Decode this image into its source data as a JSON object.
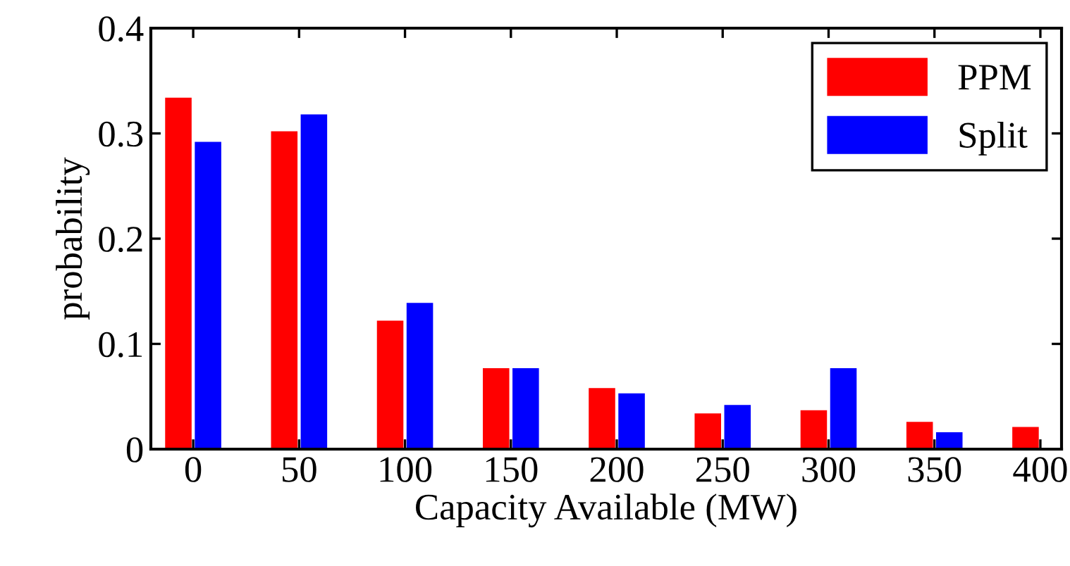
{
  "chart_data": {
    "type": "bar",
    "xlabel": "Capacity Available (MW)",
    "ylabel": "probability",
    "categories": [
      "0",
      "50",
      "100",
      "150",
      "200",
      "250",
      "300",
      "350",
      "400"
    ],
    "series": [
      {
        "name": "PPM",
        "color": "#ff0000",
        "values": [
          0.334,
          0.302,
          0.122,
          0.077,
          0.058,
          0.034,
          0.037,
          0.026,
          0.021
        ]
      },
      {
        "name": "Split",
        "color": "#0000ff",
        "values": [
          0.292,
          0.318,
          0.139,
          0.077,
          0.053,
          0.042,
          0.077,
          0.016,
          null
        ]
      }
    ],
    "ylim": [
      0,
      0.4
    ],
    "yticks": [
      0,
      0.1,
      0.2,
      0.3,
      0.4
    ],
    "grid": false,
    "legend": "top right"
  }
}
